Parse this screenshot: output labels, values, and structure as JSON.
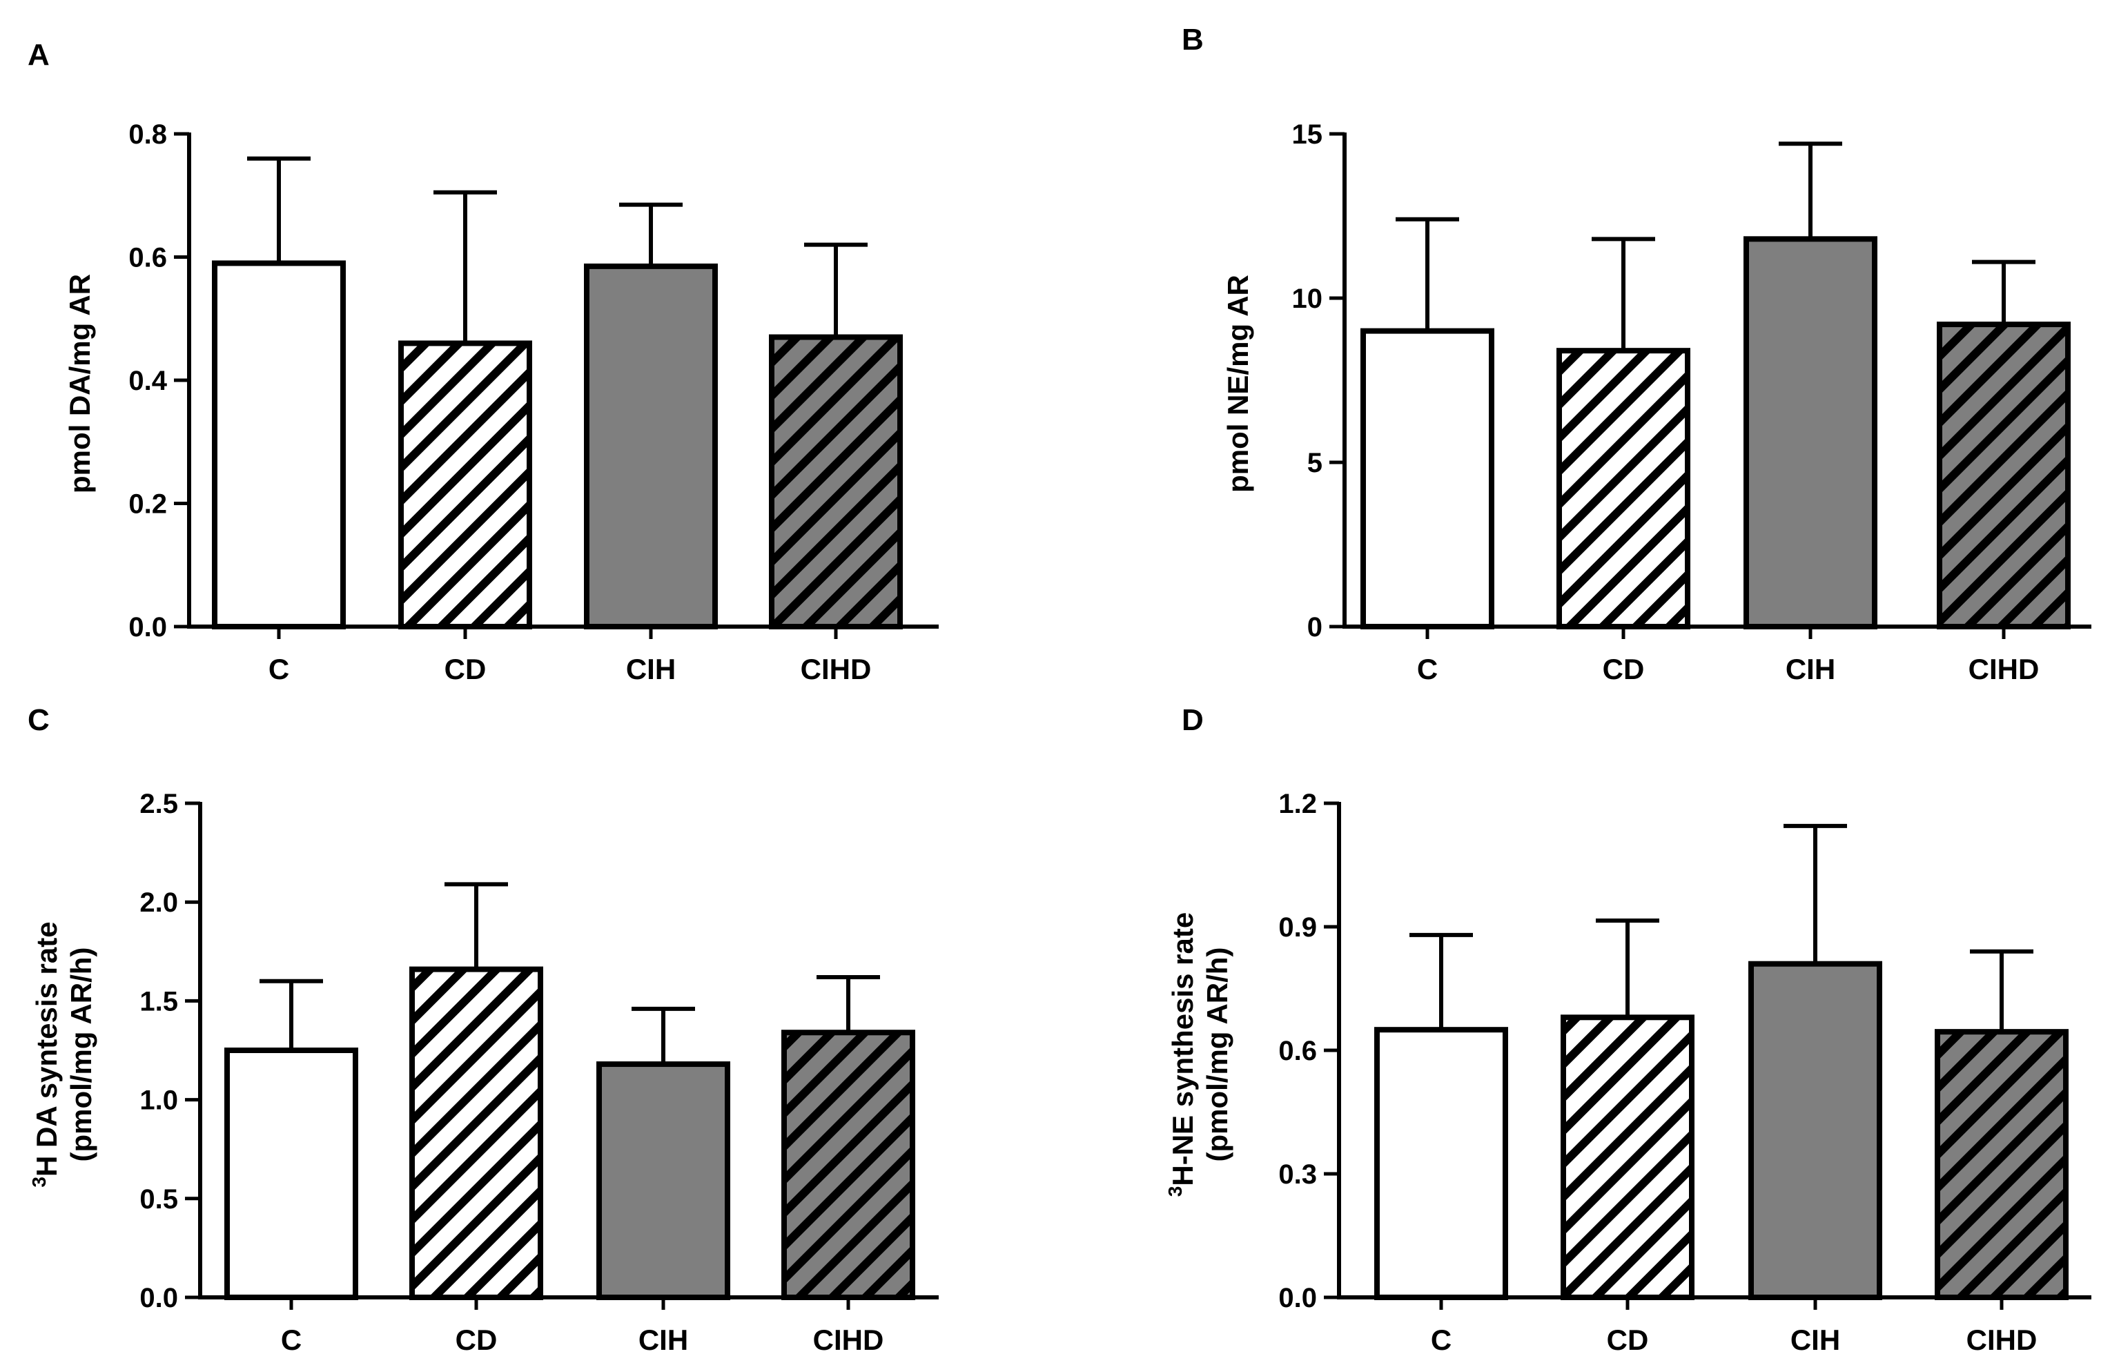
{
  "colors": {
    "white_bar": "#ffffff",
    "gray_bar": "#7f7f7f",
    "hatch_light_bg": "#ffffff",
    "hatch_dark_bg": "#7f7f7f",
    "stroke": "#000000"
  },
  "chart_data": [
    {
      "type": "bar",
      "panel": "A",
      "categories": [
        "C",
        "CD",
        "CIH",
        "CIHD"
      ],
      "values": [
        0.59,
        0.46,
        0.585,
        0.47
      ],
      "errors": [
        0.17,
        0.245,
        0.1,
        0.15
      ],
      "fills": [
        "white",
        "hatch-light",
        "gray",
        "hatch-dark"
      ],
      "ylabel": "pmol DA/mg AR",
      "ylim": [
        0,
        0.8
      ],
      "yticks": [
        0,
        0.2,
        0.4,
        0.6,
        0.8
      ],
      "ytick_labels": [
        "0.0",
        "0.2",
        "0.4",
        "0.6",
        "0.8"
      ]
    },
    {
      "type": "bar",
      "panel": "B",
      "categories": [
        "C",
        "CD",
        "CIH",
        "CIHD"
      ],
      "values": [
        9.0,
        8.4,
        11.8,
        9.2
      ],
      "errors": [
        3.4,
        3.4,
        2.9,
        1.9
      ],
      "fills": [
        "white",
        "hatch-light",
        "gray",
        "hatch-dark"
      ],
      "ylabel": "pmol NE/mg AR",
      "ylim": [
        0,
        15
      ],
      "yticks": [
        0,
        5,
        10,
        15
      ],
      "ytick_labels": [
        "0",
        "5",
        "10",
        "15"
      ]
    },
    {
      "type": "bar",
      "panel": "C",
      "categories": [
        "C",
        "CD",
        "CIH",
        "CIHD"
      ],
      "values": [
        1.25,
        1.66,
        1.18,
        1.34
      ],
      "errors": [
        0.35,
        0.43,
        0.28,
        0.28
      ],
      "fills": [
        "white",
        "hatch-light",
        "gray",
        "hatch-dark"
      ],
      "ylabel_sup": "3",
      "ylabel": "H DA syntesis rate",
      "ylabel2": "(pmol/mg AR/h)",
      "ylim": [
        0,
        2.5
      ],
      "yticks": [
        0,
        0.5,
        1.0,
        1.5,
        2.0,
        2.5
      ],
      "ytick_labels": [
        "0.0",
        "0.5",
        "1.0",
        "1.5",
        "2.0",
        "2.5"
      ]
    },
    {
      "type": "bar",
      "panel": "D",
      "categories": [
        "C",
        "CD",
        "CIH",
        "CIHD"
      ],
      "values": [
        0.65,
        0.68,
        0.81,
        0.645
      ],
      "errors": [
        0.23,
        0.235,
        0.335,
        0.195
      ],
      "fills": [
        "white",
        "hatch-light",
        "gray",
        "hatch-dark"
      ],
      "ylabel_sup": "3",
      "ylabel": "H-NE synthesis rate",
      "ylabel2": "(pmol/mg AR/h)",
      "ylim": [
        0,
        1.2
      ],
      "yticks": [
        0,
        0.3,
        0.6,
        0.9,
        1.2
      ],
      "ytick_labels": [
        "0.0",
        "0.3",
        "0.6",
        "0.9",
        "1.2"
      ]
    }
  ]
}
